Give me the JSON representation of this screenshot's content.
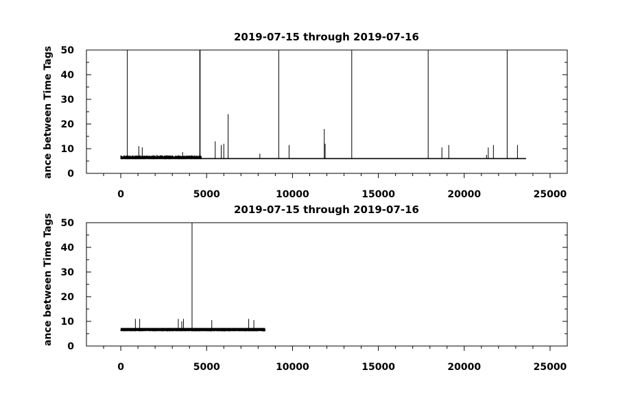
{
  "colors": {
    "background": "#ffffff",
    "ink": "#000000"
  },
  "chart_data": [
    {
      "type": "line",
      "title": "2019-07-15 through 2019-07-16",
      "xlabel": "",
      "ylabel": "ance between Time Tags",
      "xlim": [
        -2000,
        26000
      ],
      "ylim": [
        0,
        50
      ],
      "xticks": [
        0,
        5000,
        10000,
        15000,
        20000,
        25000
      ],
      "yticks": [
        0,
        10,
        20,
        30,
        40,
        50
      ],
      "grid": false,
      "baseline": {
        "x_start": 0,
        "x_end": 23600,
        "y": 6.0
      },
      "noise": {
        "x_start": 0,
        "x_end": 4700,
        "y_low": 6.0,
        "y_high": 7.3
      },
      "spikes": [
        {
          "x": 380,
          "y": 50
        },
        {
          "x": 1050,
          "y": 11
        },
        {
          "x": 1250,
          "y": 10.5
        },
        {
          "x": 2100,
          "y": 7.5
        },
        {
          "x": 3600,
          "y": 8.6
        },
        {
          "x": 4600,
          "y": 50
        },
        {
          "x": 4620,
          "y": 50
        },
        {
          "x": 5500,
          "y": 13
        },
        {
          "x": 5850,
          "y": 11.5
        },
        {
          "x": 6000,
          "y": 12
        },
        {
          "x": 6250,
          "y": 24
        },
        {
          "x": 8100,
          "y": 8
        },
        {
          "x": 9200,
          "y": 50
        },
        {
          "x": 9800,
          "y": 11.5
        },
        {
          "x": 11850,
          "y": 18
        },
        {
          "x": 11900,
          "y": 12
        },
        {
          "x": 13450,
          "y": 50
        },
        {
          "x": 17900,
          "y": 50
        },
        {
          "x": 18700,
          "y": 10.5
        },
        {
          "x": 19100,
          "y": 11.5
        },
        {
          "x": 21300,
          "y": 7.5
        },
        {
          "x": 21400,
          "y": 10.5
        },
        {
          "x": 21700,
          "y": 11.5
        },
        {
          "x": 22500,
          "y": 50
        },
        {
          "x": 23100,
          "y": 11.5
        }
      ]
    },
    {
      "type": "line",
      "title": "2019-07-15 through 2019-07-16",
      "xlabel": "",
      "ylabel": "ance between Time Tags",
      "xlim": [
        -2000,
        26000
      ],
      "ylim": [
        0,
        50
      ],
      "xticks": [
        0,
        5000,
        10000,
        15000,
        20000,
        25000
      ],
      "yticks": [
        0,
        10,
        20,
        30,
        40,
        50
      ],
      "grid": false,
      "baseline": {
        "x_start": 0,
        "x_end": 8400,
        "y": 6.9
      },
      "noise": {
        "x_start": 0,
        "x_end": 8400,
        "y_low": 6.2,
        "y_high": 7.3
      },
      "spikes": [
        {
          "x": 850,
          "y": 11
        },
        {
          "x": 1100,
          "y": 11
        },
        {
          "x": 3350,
          "y": 11
        },
        {
          "x": 3550,
          "y": 10
        },
        {
          "x": 3650,
          "y": 11
        },
        {
          "x": 4150,
          "y": 50
        },
        {
          "x": 5300,
          "y": 10.5
        },
        {
          "x": 7450,
          "y": 11
        },
        {
          "x": 7750,
          "y": 10.5
        }
      ]
    }
  ]
}
